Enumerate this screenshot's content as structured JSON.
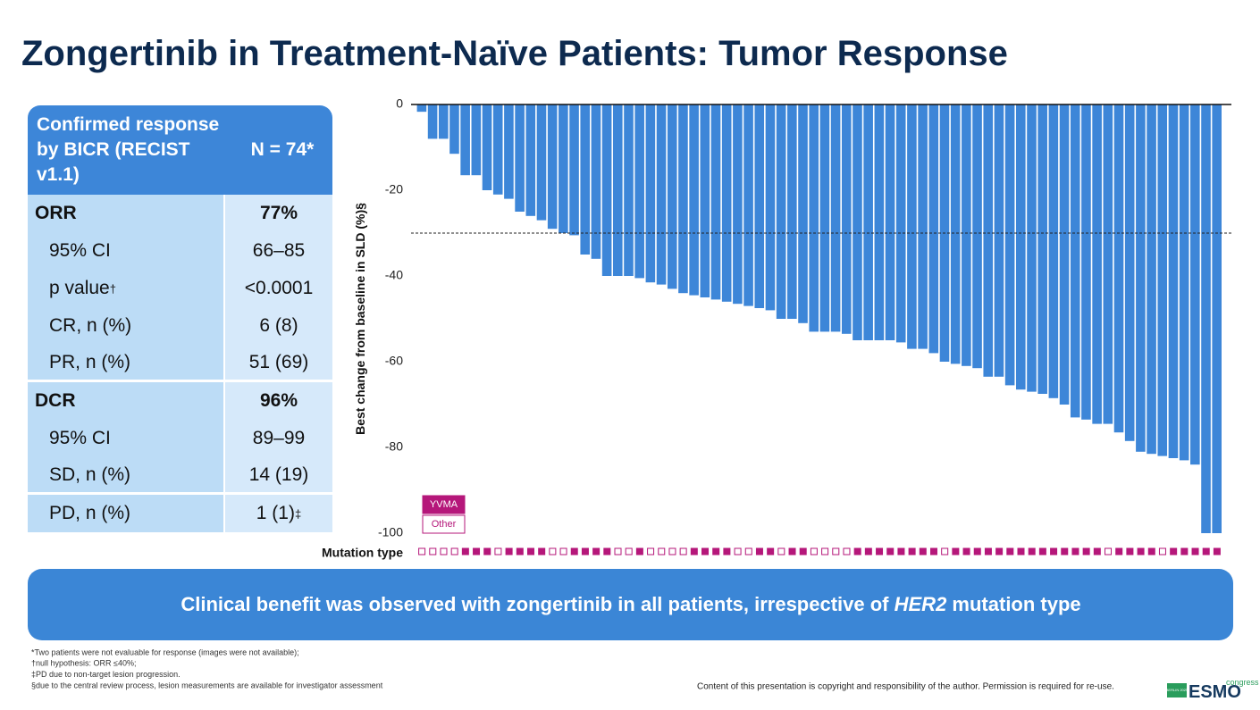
{
  "header": {
    "title": "Zongertinib in Treatment-Naïve Patients: Tumor Response"
  },
  "table": {
    "header": [
      "Confirmed response by BICR (RECIST v1.1)",
      "N = 74*"
    ],
    "rows": [
      {
        "label": "ORR",
        "value": "77%",
        "bold": true
      },
      {
        "label": "95% CI",
        "value": "66–85"
      },
      {
        "label": "p value",
        "label_sup": "†",
        "value": "<0.0001"
      },
      {
        "label": "CR, n (%)",
        "value": "6 (8)"
      },
      {
        "label": "PR, n (%)",
        "value": "51 (69)",
        "group_end": true
      },
      {
        "label": "DCR",
        "value": "96%",
        "bold": true
      },
      {
        "label": "95% CI",
        "value": "89–99"
      },
      {
        "label": "SD, n (%)",
        "value": "14 (19)",
        "group_end": true
      },
      {
        "label": "PD, n (%)",
        "value": "1 (1)",
        "value_sup": "‡"
      }
    ]
  },
  "chart_data": {
    "type": "bar",
    "ylabel": "Best change from baseline in SLD (%)§",
    "color": "#3d86d8",
    "values": [
      -1.7,
      -8,
      -8,
      -11.5,
      -16.5,
      -16.5,
      -20,
      -21,
      -22,
      -25,
      -26,
      -27,
      -29,
      -30,
      -30.5,
      -35,
      -36,
      -40,
      -40,
      -40,
      -40.5,
      -41.5,
      -42,
      -43,
      -44,
      -44.5,
      -45,
      -45.5,
      -46,
      -46.5,
      -47,
      -47.5,
      -48,
      -50,
      -50,
      -51,
      -53,
      -53,
      -53,
      -53.5,
      -55,
      -55,
      -55,
      -55,
      -55.5,
      -57,
      -57,
      -58,
      -60,
      -60.5,
      -61,
      -61.5,
      -63.5,
      -63.5,
      -65.5,
      -66.5,
      -67,
      -67.5,
      -68.5,
      -70,
      -73,
      -73.5,
      -74.5,
      -74.5,
      -76.5,
      -78.5,
      -81,
      -81.5,
      -82,
      -82.5,
      -83,
      -84,
      -100,
      -100
    ],
    "ylim": [
      -100,
      0
    ],
    "yticks": [
      0,
      -20,
      -40,
      -60,
      -80,
      -100
    ],
    "reference_line": -30,
    "mutation_label": "Mutation type",
    "mutation_legend": [
      {
        "name": "YVMA",
        "color": "#b5177a"
      },
      {
        "name": "Other",
        "color": "#b5177a"
      }
    ],
    "mutation_types": [
      "Other",
      "Other",
      "Other",
      "Other",
      "YVMA",
      "YVMA",
      "YVMA",
      "Other",
      "YVMA",
      "YVMA",
      "YVMA",
      "YVMA",
      "Other",
      "Other",
      "YVMA",
      "YVMA",
      "YVMA",
      "YVMA",
      "Other",
      "Other",
      "YVMA",
      "Other",
      "Other",
      "Other",
      "Other",
      "YVMA",
      "YVMA",
      "YVMA",
      "YVMA",
      "Other",
      "Other",
      "YVMA",
      "YVMA",
      "Other",
      "YVMA",
      "YVMA",
      "Other",
      "Other",
      "Other",
      "Other",
      "YVMA",
      "YVMA",
      "YVMA",
      "YVMA",
      "YVMA",
      "YVMA",
      "YVMA",
      "YVMA",
      "Other",
      "YVMA",
      "YVMA",
      "YVMA",
      "YVMA",
      "YVMA",
      "YVMA",
      "YVMA",
      "YVMA",
      "YVMA",
      "YVMA",
      "YVMA",
      "YVMA",
      "YVMA",
      "YVMA",
      "Other",
      "YVMA",
      "YVMA",
      "YVMA",
      "YVMA",
      "Other",
      "YVMA",
      "YVMA",
      "YVMA",
      "YVMA",
      "YVMA"
    ]
  },
  "banner": {
    "before": "Clinical benefit was observed with zongertinib in all patients, irrespective of ",
    "italic": "HER2",
    "after": " mutation type"
  },
  "footnotes": [
    "*Two patients were not evaluable for response (images were not available);",
    "†null hypothesis: ORR ≤40%;",
    "‡PD due to non-target lesion progression.",
    "§due to the central review process, lesion measurements are available for investigator assessment"
  ],
  "copyright": "Content of this presentation is copyright and responsibility of the author. Permission is required for re-use.",
  "logo": {
    "city": "BERLIN 2025",
    "name": "ESMO",
    "sub": "congress"
  }
}
